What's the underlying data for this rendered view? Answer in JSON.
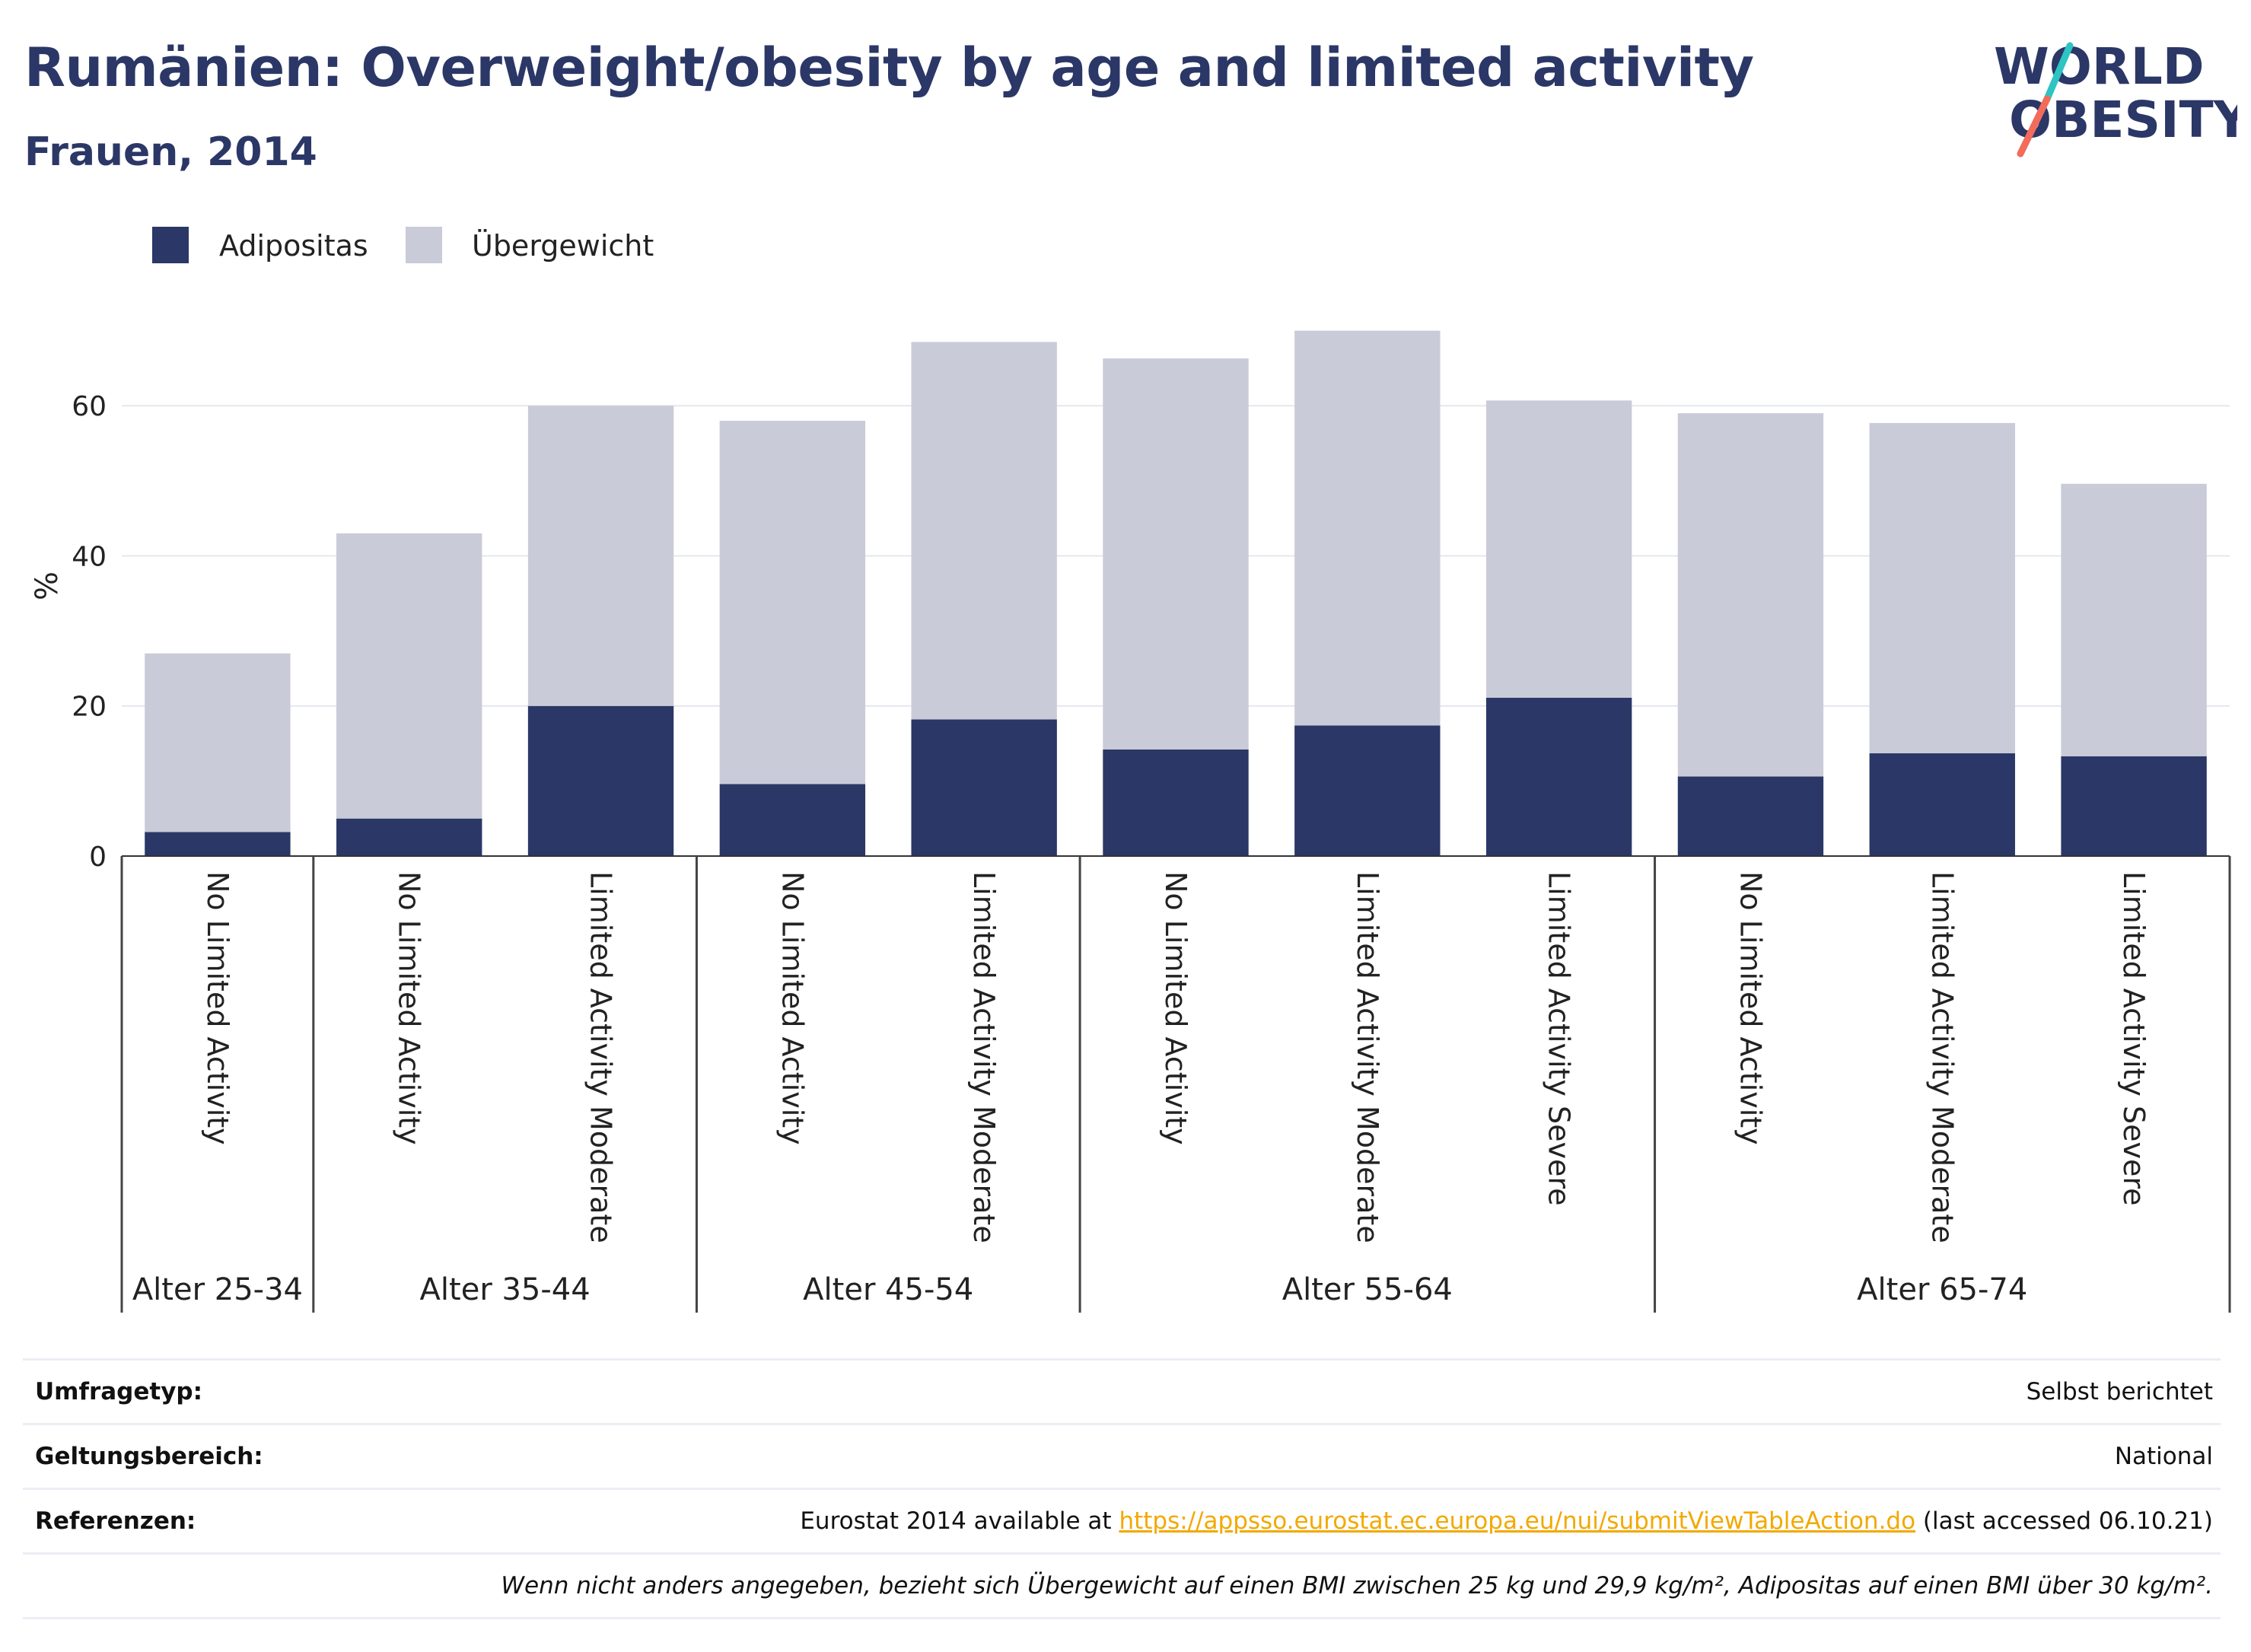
{
  "header": {
    "title": "Rumänien: Overweight/obesity by age and limited activity",
    "subtitle": "Frauen, 2014"
  },
  "logo": {
    "line1": "WORLD",
    "line2": "OBESITY",
    "accent_colors": [
      "#2ec4c4",
      "#f26b5b"
    ]
  },
  "colors": {
    "obesity": "#2b3766",
    "overweight": "#c9cbd8",
    "text_dark": "#2b3766",
    "link": "#f2a900"
  },
  "chart_data": {
    "type": "bar",
    "stacked": true,
    "ylabel": "%",
    "ylim": [
      0,
      73
    ],
    "yticks": [
      0,
      20,
      40,
      60
    ],
    "grid": true,
    "legend_position": "top-left",
    "categories": [
      {
        "label": "No Limited Activity",
        "group": "Alter 25-34"
      },
      {
        "label": "No Limited Activity",
        "group": "Alter 35-44"
      },
      {
        "label": "Limited Activity Moderate",
        "group": "Alter 35-44"
      },
      {
        "label": "No Limited Activity",
        "group": "Alter 45-54"
      },
      {
        "label": "Limited Activity Moderate",
        "group": "Alter 45-54"
      },
      {
        "label": "No Limited Activity",
        "group": "Alter 55-64"
      },
      {
        "label": "Limited Activity Moderate",
        "group": "Alter 55-64"
      },
      {
        "label": "Limited Activity Severe",
        "group": "Alter 55-64"
      },
      {
        "label": "No Limited Activity",
        "group": "Alter 65-74"
      },
      {
        "label": "Limited Activity Moderate",
        "group": "Alter 65-74"
      },
      {
        "label": "Limited Activity Severe",
        "group": "Alter 65-74"
      }
    ],
    "groups": [
      "Alter 25-34",
      "Alter 35-44",
      "Alter 45-54",
      "Alter 55-64",
      "Alter 65-74"
    ],
    "series": [
      {
        "name": "Adipositas",
        "color": "#2b3766",
        "values": [
          3.2,
          5.0,
          20.0,
          9.6,
          18.2,
          14.2,
          17.4,
          21.1,
          10.6,
          13.7,
          13.3
        ]
      },
      {
        "name": "Übergewicht",
        "color": "#c9cbd8",
        "values": [
          23.8,
          38.0,
          40.0,
          48.4,
          50.3,
          52.1,
          52.6,
          39.6,
          48.4,
          44.0,
          36.3
        ]
      }
    ]
  },
  "meta": {
    "survey_label": "Umfragetyp:",
    "survey_value": "Selbst berichtet",
    "scope_label": "Geltungsbereich:",
    "scope_value": "National",
    "ref_label": "Referenzen:",
    "ref_prefix": "Eurostat 2014 available at ",
    "ref_link": "https://appsso.eurostat.ec.europa.eu/nui/submitViewTableAction.do",
    "ref_suffix": " (last accessed 06.10.21)",
    "note": "Wenn nicht anders angegeben, bezieht sich Übergewicht auf einen BMI zwischen 25 kg und 29,9 kg/m², Adipositas auf einen BMI über 30 kg/m²."
  }
}
